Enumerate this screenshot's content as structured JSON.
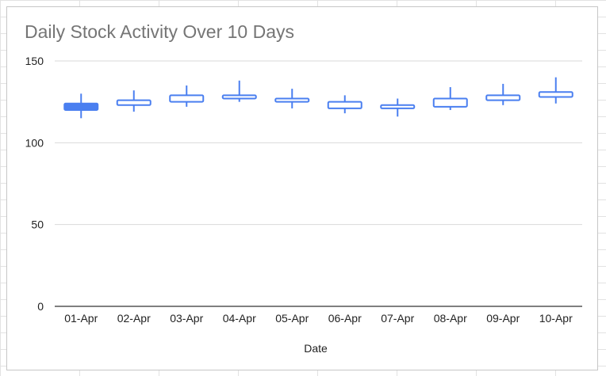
{
  "chart_data": {
    "type": "candlestick",
    "title": "Daily Stock Activity Over 10 Days",
    "xlabel": "Date",
    "ylabel": "",
    "ylim": [
      0,
      150
    ],
    "yticks": [
      0,
      50,
      100,
      150
    ],
    "grid": true,
    "legend": "none",
    "categories": [
      "01-Apr",
      "02-Apr",
      "03-Apr",
      "04-Apr",
      "05-Apr",
      "06-Apr",
      "07-Apr",
      "08-Apr",
      "09-Apr",
      "10-Apr"
    ],
    "low": [
      115,
      119,
      122,
      125,
      121,
      118,
      116,
      120,
      123,
      124
    ],
    "open": [
      124,
      123,
      125,
      127,
      125,
      121,
      121,
      122,
      126,
      128
    ],
    "close": [
      120,
      126,
      129,
      129,
      127,
      125,
      123,
      127,
      129,
      131
    ],
    "high": [
      130,
      132,
      135,
      138,
      133,
      129,
      127,
      134,
      136,
      140
    ],
    "colors": {
      "candle": "#4a7ff0",
      "gridline": "#d9d9d9",
      "baseline": "#333333",
      "title": "#757575",
      "text": "#222222"
    }
  }
}
